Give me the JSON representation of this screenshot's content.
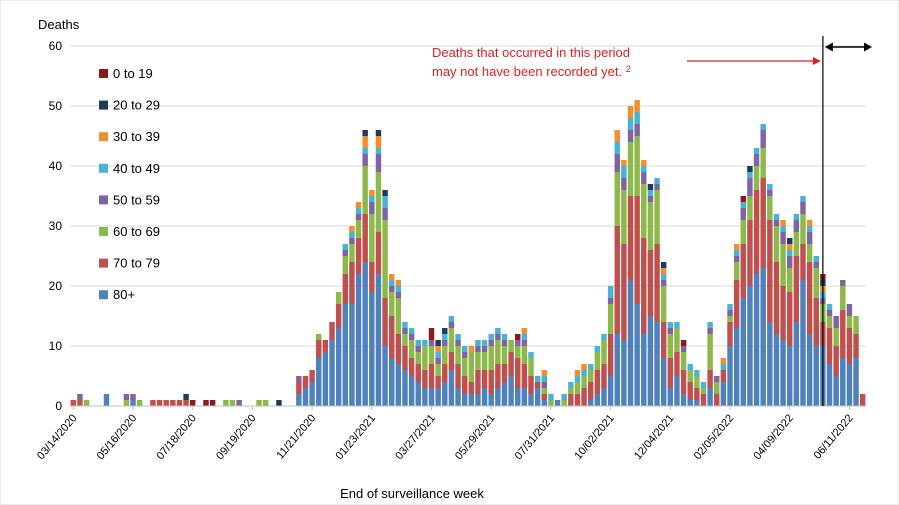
{
  "chart_data": {
    "type": "bar",
    "stacked": true,
    "ylabel": "Deaths",
    "xlabel": "End of surveillance week",
    "ylim": [
      0,
      60
    ],
    "yticks": [
      0,
      10,
      20,
      30,
      40,
      50,
      60
    ],
    "grid": "horizontal",
    "legend_position": "left",
    "x_tick_labels": [
      "03/14/2020",
      "05/16/2020",
      "07/18/2020",
      "09/19/2020",
      "11/21/2020",
      "01/23/2021",
      "03/27/2021",
      "05/29/2021",
      "07/31/2021",
      "10/02/2021",
      "12/04/2021",
      "02/05/2022",
      "04/09/2022",
      "06/11/2022"
    ],
    "x_tick_index": [
      0,
      9,
      18,
      27,
      36,
      45,
      54,
      63,
      72,
      81,
      90,
      99,
      108,
      117
    ],
    "annotation": {
      "text_line1": "Deaths that occurred in this period",
      "text_line2": "may not have been recorded yet.",
      "superscript": "2",
      "color": "#e02020",
      "cutoff_index": 113.5
    },
    "series": [
      {
        "name": "0 to 19",
        "color": "#8b1a1a",
        "values": [
          0,
          0,
          0,
          0,
          0,
          0,
          0,
          0,
          0,
          0,
          0,
          0,
          0,
          0,
          0,
          0,
          0,
          0,
          1,
          0,
          1,
          1,
          0,
          0,
          0,
          0,
          0,
          0,
          0,
          0,
          0,
          0,
          0,
          0,
          0,
          0,
          0,
          0,
          0,
          0,
          0,
          0,
          0,
          0,
          0,
          0,
          0,
          0,
          0,
          0,
          0,
          0,
          0,
          0,
          2,
          0,
          0,
          0,
          0,
          0,
          0,
          0,
          0,
          0,
          0,
          0,
          0,
          1,
          0,
          0,
          0,
          0,
          0,
          0,
          0,
          0,
          0,
          0,
          0,
          0,
          0,
          0,
          0,
          0,
          0,
          0,
          0,
          0,
          0,
          0,
          0,
          0,
          1,
          0,
          0,
          0,
          0,
          0,
          0,
          0,
          0,
          1,
          0,
          0,
          0,
          0,
          0,
          0,
          0,
          0,
          0,
          0,
          0,
          1,
          0,
          0,
          0,
          0,
          0,
          0
        ]
      },
      {
        "name": "20 to 29",
        "color": "#1f3b5c",
        "values": [
          0,
          0,
          0,
          0,
          0,
          0,
          0,
          0,
          0,
          0,
          0,
          0,
          0,
          0,
          0,
          0,
          0,
          1,
          0,
          0,
          0,
          0,
          0,
          0,
          0,
          0,
          0,
          0,
          0,
          0,
          0,
          1,
          0,
          0,
          0,
          0,
          0,
          0,
          0,
          0,
          0,
          0,
          0,
          0,
          1,
          0,
          1,
          1,
          0,
          0,
          0,
          0,
          0,
          0,
          0,
          1,
          1,
          0,
          0,
          0,
          0,
          0,
          0,
          0,
          0,
          0,
          0,
          0,
          0,
          0,
          0,
          0,
          0,
          0,
          0,
          0,
          0,
          0,
          0,
          0,
          0,
          0,
          0,
          0,
          0,
          0,
          0,
          1,
          0,
          1,
          0,
          0,
          0,
          0,
          0,
          0,
          0,
          0,
          0,
          0,
          0,
          0,
          1,
          0,
          0,
          0,
          0,
          0,
          1,
          0,
          0,
          0,
          0,
          1,
          0,
          0,
          0,
          0,
          0,
          0
        ]
      },
      {
        "name": "30 to 39",
        "color": "#f28e2b",
        "values": [
          0,
          0,
          0,
          0,
          0,
          0,
          0,
          0,
          0,
          0,
          0,
          0,
          0,
          0,
          0,
          0,
          0,
          0,
          0,
          0,
          0,
          0,
          0,
          0,
          0,
          0,
          0,
          0,
          0,
          0,
          0,
          0,
          0,
          0,
          0,
          0,
          0,
          0,
          0,
          0,
          0,
          0,
          1,
          1,
          2,
          1,
          2,
          0,
          1,
          1,
          0,
          0,
          0,
          0,
          0,
          1,
          0,
          0,
          0,
          0,
          1,
          0,
          0,
          0,
          0,
          0,
          0,
          0,
          1,
          0,
          0,
          1,
          0,
          0,
          0,
          0,
          1,
          1,
          0,
          0,
          0,
          0,
          2,
          1,
          2,
          2,
          1,
          0,
          0,
          1,
          0,
          0,
          0,
          0,
          0,
          0,
          0,
          0,
          1,
          0,
          1,
          0,
          0,
          0,
          0,
          0,
          0,
          1,
          1,
          0,
          0,
          1,
          0,
          1,
          0,
          0,
          0,
          0,
          0,
          0
        ]
      },
      {
        "name": "40 to 49",
        "color": "#4ab3d4",
        "values": [
          0,
          0,
          0,
          0,
          0,
          0,
          0,
          0,
          0,
          0,
          0,
          0,
          0,
          0,
          0,
          0,
          0,
          0,
          0,
          0,
          0,
          0,
          0,
          0,
          0,
          0,
          0,
          0,
          0,
          0,
          0,
          0,
          0,
          0,
          0,
          0,
          0,
          0,
          0,
          0,
          0,
          1,
          1,
          1,
          1,
          1,
          1,
          2,
          1,
          1,
          1,
          1,
          1,
          1,
          0,
          1,
          1,
          1,
          1,
          1,
          0,
          1,
          1,
          1,
          1,
          1,
          0,
          0,
          1,
          1,
          1,
          1,
          1,
          0,
          1,
          1,
          1,
          1,
          1,
          1,
          1,
          2,
          2,
          2,
          2,
          2,
          1,
          1,
          1,
          1,
          1,
          1,
          0,
          1,
          1,
          1,
          1,
          0,
          1,
          1,
          1,
          1,
          1,
          1,
          1,
          1,
          1,
          1,
          1,
          1,
          1,
          1,
          1,
          1,
          1,
          0,
          0,
          0,
          0,
          0
        ]
      },
      {
        "name": "50 to 59",
        "color": "#8064a2",
        "values": [
          0,
          1,
          0,
          0,
          0,
          0,
          0,
          0,
          1,
          1,
          0,
          0,
          0,
          0,
          0,
          0,
          0,
          0,
          0,
          0,
          0,
          0,
          0,
          0,
          0,
          1,
          0,
          0,
          0,
          0,
          0,
          0,
          0,
          0,
          1,
          0,
          0,
          0,
          0,
          0,
          0,
          1,
          1,
          1,
          2,
          2,
          3,
          2,
          1,
          1,
          1,
          1,
          1,
          0,
          1,
          1,
          1,
          1,
          1,
          1,
          0,
          1,
          1,
          1,
          1,
          1,
          0,
          1,
          1,
          0,
          0,
          1,
          0,
          0,
          0,
          0,
          0,
          0,
          0,
          0,
          0,
          1,
          3,
          2,
          2,
          2,
          2,
          1,
          1,
          1,
          1,
          0,
          1,
          0,
          0,
          0,
          1,
          1,
          0,
          1,
          1,
          2,
          3,
          2,
          3,
          1,
          1,
          2,
          2,
          2,
          2,
          2,
          1,
          1,
          1,
          2,
          1,
          2,
          0,
          0
        ]
      },
      {
        "name": "60 to 69",
        "color": "#8db94a",
        "values": [
          0,
          0,
          1,
          0,
          0,
          0,
          0,
          0,
          1,
          0,
          1,
          0,
          0,
          0,
          0,
          0,
          0,
          0,
          0,
          0,
          0,
          0,
          0,
          1,
          1,
          0,
          0,
          0,
          1,
          1,
          0,
          0,
          0,
          0,
          0,
          0,
          0,
          1,
          0,
          0,
          2,
          3,
          3,
          3,
          8,
          8,
          10,
          13,
          4,
          6,
          2,
          3,
          2,
          4,
          3,
          2,
          3,
          4,
          3,
          3,
          5,
          3,
          3,
          4,
          4,
          3,
          2,
          2,
          3,
          3,
          0,
          1,
          1,
          0,
          1,
          1,
          2,
          2,
          2,
          3,
          4,
          5,
          9,
          9,
          9,
          10,
          9,
          8,
          9,
          6,
          4,
          4,
          3,
          2,
          2,
          1,
          6,
          2,
          0,
          1,
          3,
          4,
          4,
          4,
          5,
          4,
          6,
          7,
          4,
          4,
          5,
          3,
          5,
          3,
          2,
          3,
          4,
          2,
          3,
          0
        ]
      },
      {
        "name": "70 to 79",
        "color": "#c0504d",
        "values": [
          1,
          1,
          0,
          0,
          0,
          0,
          0,
          0,
          0,
          0,
          0,
          0,
          1,
          1,
          1,
          1,
          1,
          1,
          0,
          0,
          0,
          0,
          0,
          0,
          0,
          0,
          0,
          0,
          0,
          0,
          0,
          0,
          0,
          0,
          2,
          2,
          2,
          3,
          2,
          3,
          4,
          5,
          7,
          6,
          8,
          5,
          7,
          8,
          7,
          5,
          4,
          3,
          3,
          3,
          4,
          2,
          3,
          3,
          4,
          3,
          2,
          4,
          3,
          4,
          4,
          3,
          4,
          5,
          4,
          3,
          1,
          1,
          0,
          0,
          0,
          2,
          2,
          3,
          3,
          4,
          4,
          7,
          18,
          16,
          14,
          18,
          16,
          11,
          13,
          6,
          5,
          4,
          4,
          3,
          2,
          2,
          3,
          2,
          2,
          4,
          8,
          9,
          11,
          14,
          15,
          17,
          12,
          9,
          9,
          11,
          6,
          12,
          8,
          4,
          6,
          5,
          8,
          6,
          4,
          2
        ]
      },
      {
        "name": "80+",
        "color": "#4f81bd",
        "values": [
          0,
          0,
          0,
          0,
          0,
          2,
          0,
          0,
          0,
          1,
          0,
          0,
          0,
          0,
          0,
          0,
          0,
          0,
          0,
          0,
          0,
          0,
          0,
          0,
          0,
          0,
          0,
          0,
          0,
          0,
          0,
          0,
          0,
          0,
          2,
          3,
          4,
          8,
          9,
          11,
          13,
          17,
          17,
          22,
          24,
          19,
          22,
          10,
          8,
          7,
          6,
          5,
          4,
          3,
          3,
          3,
          4,
          6,
          3,
          2,
          2,
          2,
          3,
          2,
          3,
          4,
          5,
          3,
          3,
          2,
          3,
          1,
          0,
          1,
          0,
          0,
          0,
          0,
          1,
          2,
          3,
          5,
          12,
          11,
          21,
          17,
          12,
          15,
          14,
          8,
          3,
          5,
          2,
          1,
          1,
          0,
          3,
          0,
          4,
          10,
          13,
          18,
          20,
          22,
          23,
          14,
          12,
          11,
          10,
          14,
          21,
          12,
          10,
          10,
          7,
          5,
          8,
          7,
          8,
          0
        ]
      }
    ]
  }
}
